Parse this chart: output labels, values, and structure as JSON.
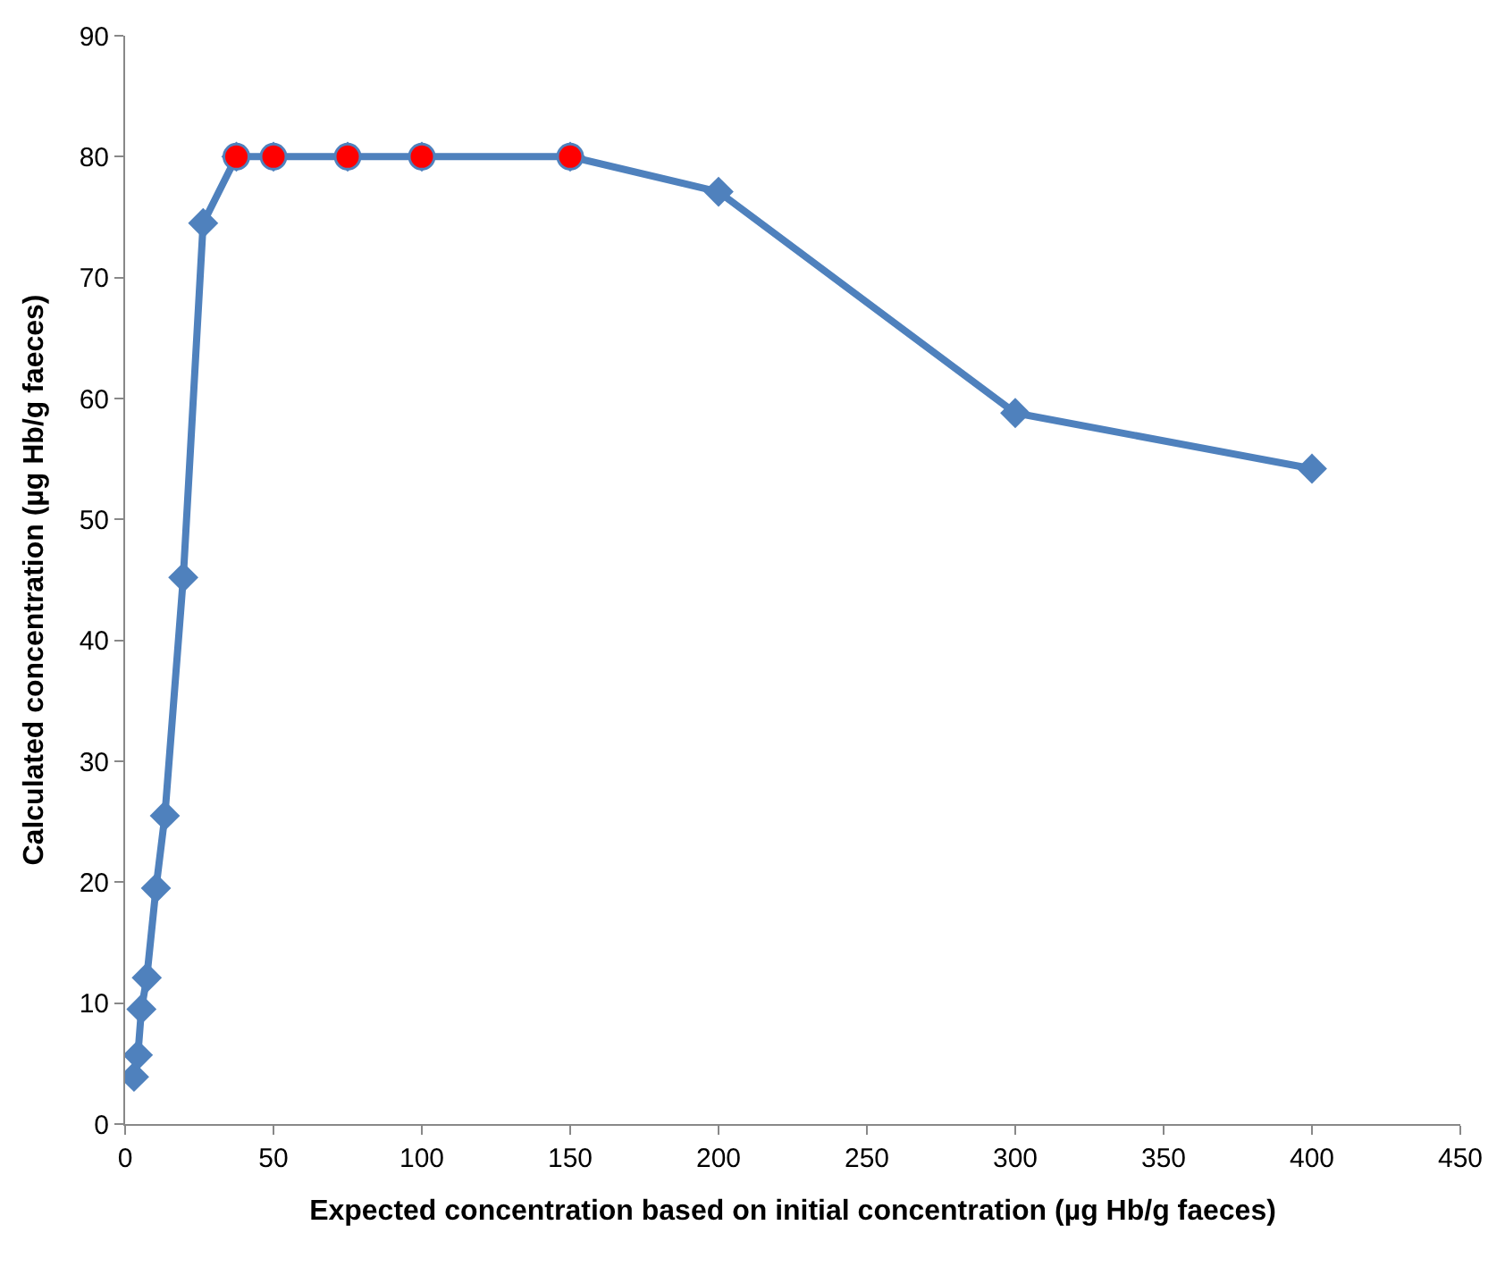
{
  "chart_data": {
    "type": "line",
    "xlabel": "Expected concentration based on initial concentration (µg Hb/g faeces)",
    "ylabel": "Calculated concentration (µg Hb/g faeces)",
    "xlim": [
      0,
      450
    ],
    "xticks": [
      0,
      50,
      100,
      150,
      200,
      250,
      300,
      350,
      400,
      450
    ],
    "ylim": [
      0,
      90
    ],
    "yticks": [
      0,
      10,
      20,
      30,
      40,
      50,
      60,
      70,
      80,
      90
    ],
    "series": [
      {
        "color": "#4f81bd",
        "marker": "diamond",
        "x": [
          3,
          4.3,
          5.5,
          7.3,
          10.4,
          13.4,
          19.6,
          26.3,
          37.5,
          50,
          75,
          100,
          150,
          200,
          300,
          400
        ],
        "values": [
          3.9,
          5.7,
          9.5,
          12.1,
          19.5,
          25.5,
          45.2,
          74.5,
          80,
          80,
          80,
          80,
          80,
          77.1,
          58.8,
          54.2
        ]
      },
      {
        "type": "scatter",
        "color": "#ff0000",
        "marker": "circle",
        "x": [
          37.5,
          50,
          75,
          100,
          150
        ],
        "values": [
          80,
          80,
          80,
          80,
          80
        ]
      }
    ]
  }
}
